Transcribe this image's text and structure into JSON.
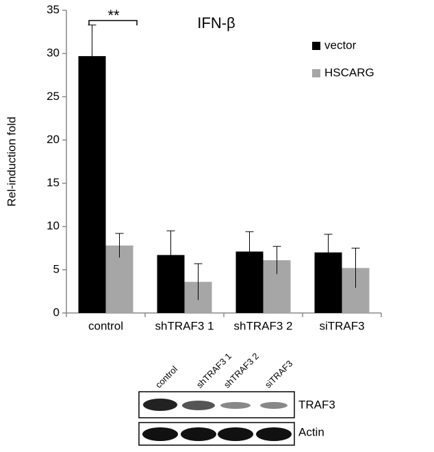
{
  "chart_data": {
    "type": "bar",
    "title": "IFN-β",
    "ylabel": "Rel-induction fold",
    "categories": [
      "control",
      "shTRAF3 1",
      "shTRAF3 2",
      "siTRAF3"
    ],
    "series": [
      {
        "name": "vector",
        "color": "#000000",
        "values": [
          29.7,
          6.7,
          7.1,
          7.0
        ],
        "errors": [
          3.6,
          2.8,
          2.3,
          2.1
        ]
      },
      {
        "name": "HSCARG",
        "color": "#a6a6a6",
        "values": [
          7.8,
          3.6,
          6.1,
          5.2
        ],
        "errors": [
          1.4,
          2.1,
          1.6,
          2.3
        ]
      }
    ],
    "ylim": [
      0,
      35
    ],
    "yticks": [
      0,
      5,
      10,
      15,
      20,
      25,
      30,
      35
    ],
    "grid": false,
    "annotation": "**"
  },
  "blot": {
    "lanes": [
      "control",
      "shTRAF3 1",
      "shTRAF3  2",
      "siTRAF3"
    ],
    "rows": [
      "TRAF3",
      "Actin"
    ]
  }
}
